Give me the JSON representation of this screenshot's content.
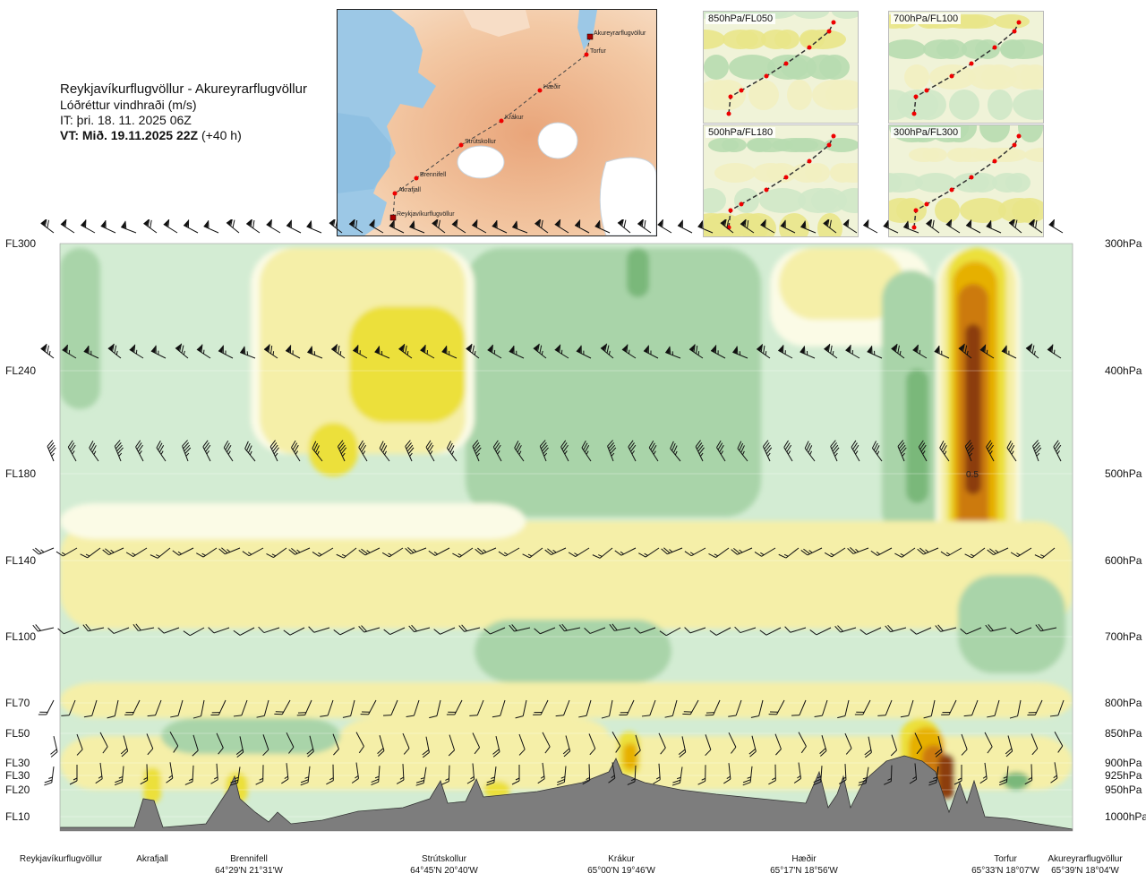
{
  "header": {
    "route": "Reykjavíkurflugvöllur - Akureyrarflugvöllur",
    "parameter": "Lóðréttur vindhraði (m/s)",
    "issue_time": "IT: þri. 18. 11. 2025 06Z",
    "valid_prefix": "VT: Mið. 19.11.2025 22Z",
    "valid_suffix": "(+40 h)"
  },
  "map": {
    "waypoints": [
      "Akureyrarflugvöllur",
      "Torfur",
      "Hæðir",
      "Krákur",
      "Strútskollur",
      "Brennifell",
      "Akrafjall",
      "Reykjavíkurflugvöllur"
    ]
  },
  "mini_maps": [
    {
      "label": "850hPa/FL050"
    },
    {
      "label": "700hPa/FL100"
    },
    {
      "label": "500hPa/FL180"
    },
    {
      "label": "300hPa/FL300"
    }
  ],
  "colors": {
    "down_strong": "#7ab87a",
    "down_mid": "#a9d4a9",
    "down_weak": "#d3ecd3",
    "near_zero": "#fbfbe6",
    "up_weak": "#f5efa8",
    "up_mid": "#ece03a",
    "up_strong": "#e6b000",
    "up_stronger": "#cc7a10",
    "up_max": "#8c3c10",
    "terrain": "#7d7d7d"
  },
  "chart_data": {
    "type": "heatmap",
    "title": "Lóðréttur vindhraði (m/s)",
    "left_axis_labels": [
      "FL300",
      "FL240",
      "FL180",
      "FL140",
      "FL100",
      "FL70",
      "FL50",
      "FL30",
      "FL30",
      "FL20",
      "FL10"
    ],
    "right_axis_labels": [
      "300hPa",
      "400hPa",
      "500hPa",
      "600hPa",
      "700hPa",
      "800hPa",
      "850hPa",
      "900hPa",
      "925hPa",
      "950hPa",
      "1000hPa"
    ],
    "pressure_levels_hpa": [
      300,
      400,
      500,
      600,
      700,
      800,
      850,
      900,
      925,
      950,
      1000
    ],
    "waypoints": [
      {
        "name": "Reykjavíkurflugvöllur",
        "coord": ""
      },
      {
        "name": "Akrafjall",
        "coord": ""
      },
      {
        "name": "Brennifell",
        "coord": "64°29'N 21°31'W"
      },
      {
        "name": "Strútskollur",
        "coord": "64°45'N 20°40'W"
      },
      {
        "name": "Krákur",
        "coord": "65°00'N 19°46'W"
      },
      {
        "name": "Hæðir",
        "coord": "65°17'N 18°56'W"
      },
      {
        "name": "Torfur",
        "coord": "65°33'N 18°07'W"
      },
      {
        "name": "Akureyrarflugvöllur",
        "coord": "65°39'N 18°04'W"
      }
    ],
    "annotations": [
      "0.5"
    ],
    "barb_levels_hpa": [
      300,
      400,
      500,
      600,
      700,
      800,
      850,
      900,
      925,
      950
    ]
  }
}
